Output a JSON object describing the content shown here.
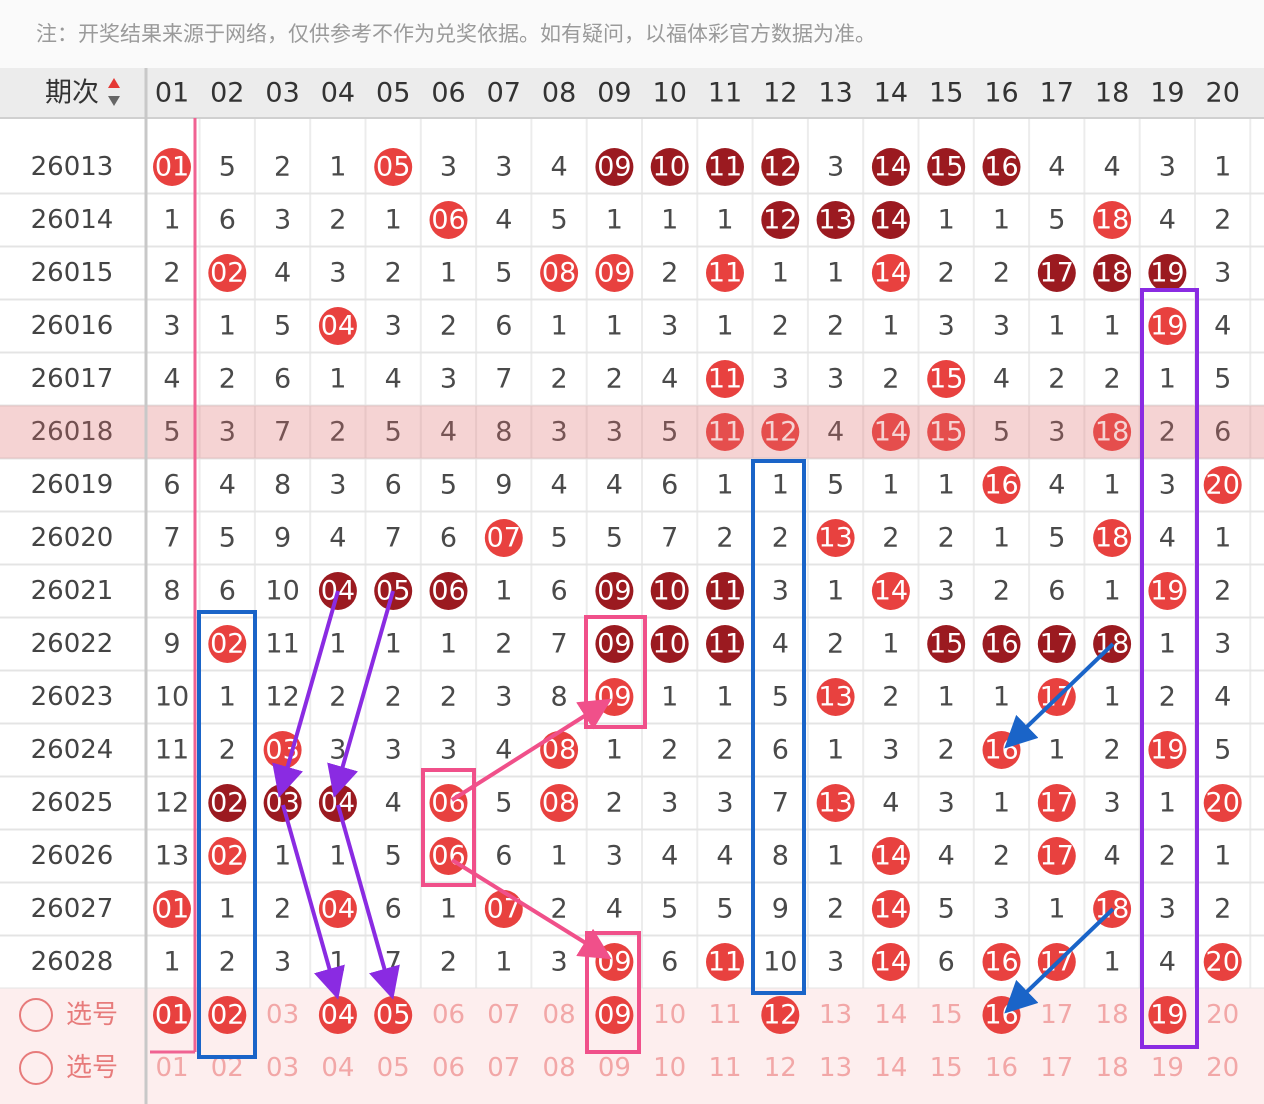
{
  "notice": "注：开奖结果来源于网络，仅供参考不作为兑奖依据。如有疑问，以福体彩官方数据为准。",
  "table": {
    "header": [
      "期次",
      "01",
      "02",
      "03",
      "04",
      "05",
      "06",
      "07",
      "08",
      "09",
      "10",
      "11",
      "12",
      "13",
      "14",
      "15",
      "16",
      "17",
      "18",
      "19",
      "20"
    ],
    "rows": [
      [
        "26013",
        "01",
        "5",
        "2",
        "1",
        "05",
        "3",
        "3",
        "4",
        "09",
        "10",
        "11",
        "12",
        "3",
        "14",
        "15",
        "16",
        "4",
        "4",
        "3",
        "1"
      ],
      [
        "26014",
        "1",
        "6",
        "3",
        "2",
        "1",
        "06",
        "4",
        "5",
        "1",
        "1",
        "1",
        "12",
        "13",
        "14",
        "1",
        "1",
        "5",
        "18",
        "4",
        "2"
      ],
      [
        "26015",
        "2",
        "02",
        "4",
        "3",
        "2",
        "1",
        "5",
        "08",
        "09",
        "2",
        "11",
        "1",
        "1",
        "14",
        "2",
        "2",
        "17",
        "18",
        "19",
        "3"
      ],
      [
        "26016",
        "3",
        "1",
        "5",
        "04",
        "3",
        "2",
        "6",
        "1",
        "1",
        "3",
        "1",
        "2",
        "2",
        "1",
        "3",
        "3",
        "1",
        "1",
        "19",
        "4"
      ],
      [
        "26017",
        "4",
        "2",
        "6",
        "1",
        "4",
        "3",
        "7",
        "2",
        "2",
        "4",
        "11",
        "3",
        "3",
        "2",
        "15",
        "4",
        "2",
        "2",
        "1",
        "5"
      ],
      [
        "26018",
        "5",
        "3",
        "7",
        "2",
        "5",
        "4",
        "8",
        "3",
        "3",
        "5",
        "11",
        "12",
        "4",
        "14",
        "15",
        "5",
        "3",
        "18",
        "2",
        "6"
      ],
      [
        "26019",
        "6",
        "4",
        "8",
        "3",
        "6",
        "5",
        "9",
        "4",
        "4",
        "6",
        "1",
        "1",
        "5",
        "1",
        "1",
        "16",
        "4",
        "1",
        "3",
        "20"
      ],
      [
        "26020",
        "7",
        "5",
        "9",
        "4",
        "7",
        "6",
        "07",
        "5",
        "5",
        "7",
        "2",
        "2",
        "13",
        "2",
        "2",
        "1",
        "5",
        "18",
        "4",
        "1"
      ],
      [
        "26021",
        "8",
        "6",
        "10",
        "04",
        "05",
        "06",
        "1",
        "6",
        "09",
        "10",
        "11",
        "3",
        "1",
        "14",
        "3",
        "2",
        "6",
        "1",
        "19",
        "2"
      ],
      [
        "26022",
        "9",
        "02",
        "11",
        "1",
        "1",
        "1",
        "2",
        "7",
        "09",
        "10",
        "11",
        "4",
        "2",
        "1",
        "15",
        "16",
        "17",
        "18",
        "1",
        "3"
      ],
      [
        "26023",
        "10",
        "1",
        "12",
        "2",
        "2",
        "2",
        "3",
        "8",
        "09",
        "1",
        "1",
        "5",
        "13",
        "2",
        "1",
        "1",
        "17",
        "1",
        "2",
        "4"
      ],
      [
        "26024",
        "11",
        "2",
        "03",
        "3",
        "3",
        "3",
        "4",
        "08",
        "1",
        "2",
        "2",
        "6",
        "1",
        "3",
        "2",
        "16",
        "1",
        "2",
        "19",
        "5"
      ],
      [
        "26025",
        "12",
        "02",
        "03",
        "04",
        "4",
        "06",
        "5",
        "08",
        "2",
        "3",
        "3",
        "7",
        "13",
        "4",
        "3",
        "1",
        "17",
        "3",
        "1",
        "20"
      ],
      [
        "26026",
        "13",
        "02",
        "1",
        "1",
        "5",
        "06",
        "6",
        "1",
        "3",
        "4",
        "4",
        "8",
        "1",
        "14",
        "4",
        "2",
        "17",
        "4",
        "2",
        "1"
      ],
      [
        "26027",
        "01",
        "1",
        "2",
        "04",
        "6",
        "1",
        "07",
        "2",
        "4",
        "5",
        "5",
        "9",
        "2",
        "14",
        "5",
        "3",
        "1",
        "18",
        "3",
        "2"
      ],
      [
        "26028",
        "1",
        "2",
        "3",
        "1",
        "7",
        "2",
        "1",
        "3",
        "09",
        "6",
        "11",
        "10",
        "3",
        "14",
        "6",
        "16",
        "17",
        "1",
        "4",
        "20"
      ]
    ]
  },
  "picks": [
    {
      "label": "选号",
      "numbers": [
        "01",
        "02",
        "03",
        "04",
        "05",
        "06",
        "07",
        "08",
        "09",
        "10",
        "11",
        "12",
        "13",
        "14",
        "15",
        "16",
        "17",
        "18",
        "19",
        "20"
      ],
      "selected": [
        true,
        true,
        false,
        true,
        true,
        false,
        false,
        false,
        true,
        false,
        false,
        true,
        false,
        false,
        false,
        true,
        false,
        false,
        true,
        false
      ]
    },
    {
      "label": "选号",
      "numbers": [
        "01",
        "02",
        "03",
        "04",
        "05",
        "06",
        "07",
        "08",
        "09",
        "10",
        "11",
        "12",
        "13",
        "14",
        "15",
        "16",
        "17",
        "18",
        "19",
        "20"
      ],
      "selected": [
        false,
        false,
        false,
        false,
        false,
        false,
        false,
        false,
        false,
        false,
        false,
        false,
        false,
        false,
        false,
        false,
        false,
        false,
        false,
        false
      ]
    }
  ]
}
